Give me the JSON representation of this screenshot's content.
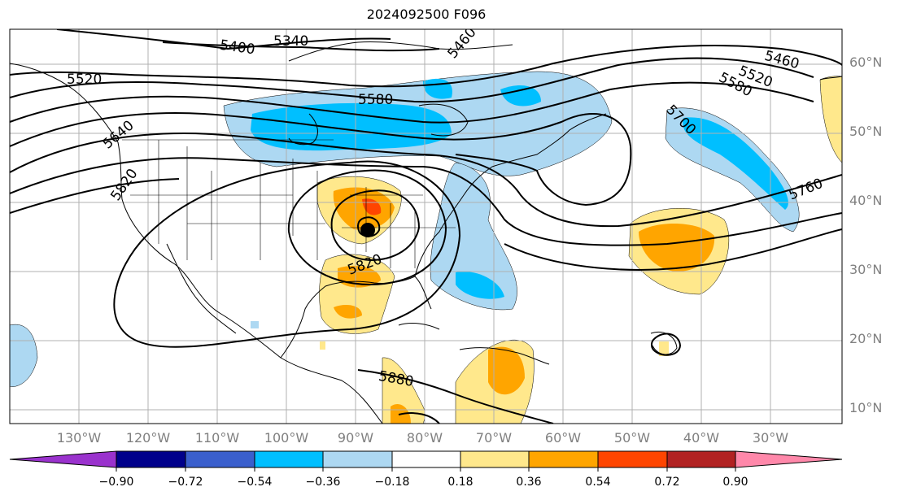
{
  "title": "2024092500 F096",
  "lat_labels": [
    "60°N",
    "50°N",
    "40°N",
    "30°N",
    "20°N",
    "10°N"
  ],
  "lon_labels": [
    "130°W",
    "120°W",
    "110°W",
    "100°W",
    "90°W",
    "80°W",
    "70°W",
    "60°W",
    "50°W",
    "40°W",
    "30°W"
  ],
  "contour_labels": [
    "5340",
    "5400",
    "5460",
    "5520",
    "5460",
    "5520",
    "5580",
    "5580",
    "5640",
    "5700",
    "5760",
    "5820",
    "5820",
    "5880"
  ],
  "colorbar": {
    "ticks": [
      "−0.90",
      "−0.72",
      "−0.54",
      "−0.36",
      "−0.18",
      "0.18",
      "0.36",
      "0.54",
      "0.72",
      "0.90"
    ],
    "colors": [
      "#9a32cd",
      "#00008b",
      "#3a5fcd",
      "#00bfff",
      "#add8f2",
      "#ffffff",
      "#ffe88c",
      "#ffa500",
      "#ff4500",
      "#b22222",
      "#ff88aa"
    ]
  },
  "center_marker": "low-center-dot"
}
